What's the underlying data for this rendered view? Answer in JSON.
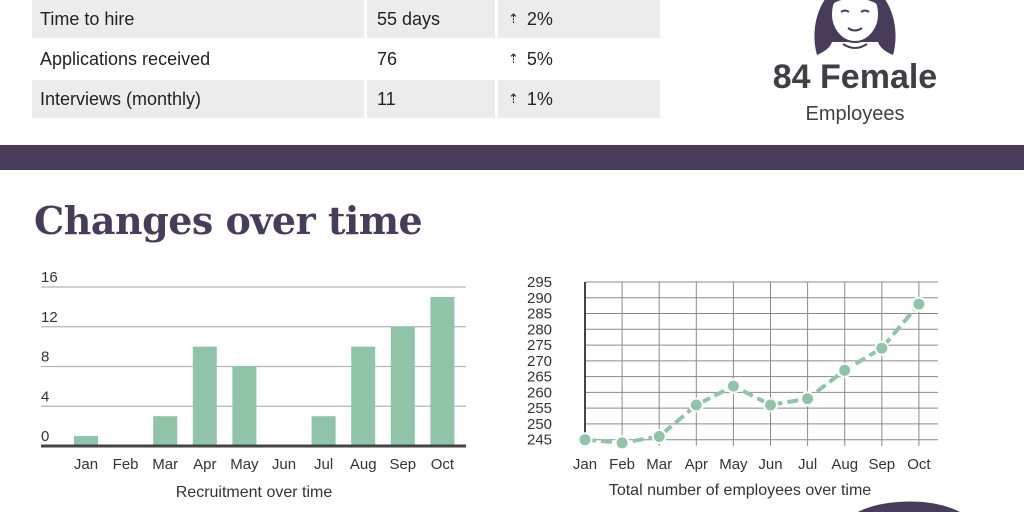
{
  "metrics": [
    {
      "label": "Time to hire",
      "value": "55 days",
      "change": "2%"
    },
    {
      "label": "Applications received",
      "value": "76",
      "change": "5%"
    },
    {
      "label": "Interviews (monthly)",
      "value": "11",
      "change": "1%"
    }
  ],
  "female": {
    "count_label": "84 Female",
    "sub_label": "Employees"
  },
  "section_title": "Changes over time",
  "colors": {
    "accent": "#473d5b",
    "series": "#8fc4a8",
    "row_shade": "#ececec"
  },
  "chart_data": [
    {
      "type": "bar",
      "categories": [
        "Jan",
        "Feb",
        "Mar",
        "Apr",
        "May",
        "Jun",
        "Jul",
        "Aug",
        "Sep",
        "Oct"
      ],
      "values": [
        1,
        0,
        3,
        10,
        8,
        0,
        3,
        10,
        12,
        15
      ],
      "yticks": [
        0,
        4,
        8,
        12,
        16
      ],
      "ylim": [
        0,
        16
      ],
      "grid": true,
      "caption": "Recruitment over time"
    },
    {
      "type": "line",
      "categories": [
        "Jan",
        "Feb",
        "Mar",
        "Apr",
        "May",
        "Jun",
        "Jul",
        "Aug",
        "Sep",
        "Oct"
      ],
      "values": [
        245,
        244,
        246,
        256,
        262,
        256,
        258,
        267,
        274,
        288
      ],
      "yticks": [
        245,
        250,
        255,
        260,
        265,
        270,
        275,
        280,
        285,
        290,
        295
      ],
      "ylim": [
        243,
        295
      ],
      "grid": true,
      "caption": "Total number of employees over time"
    }
  ]
}
